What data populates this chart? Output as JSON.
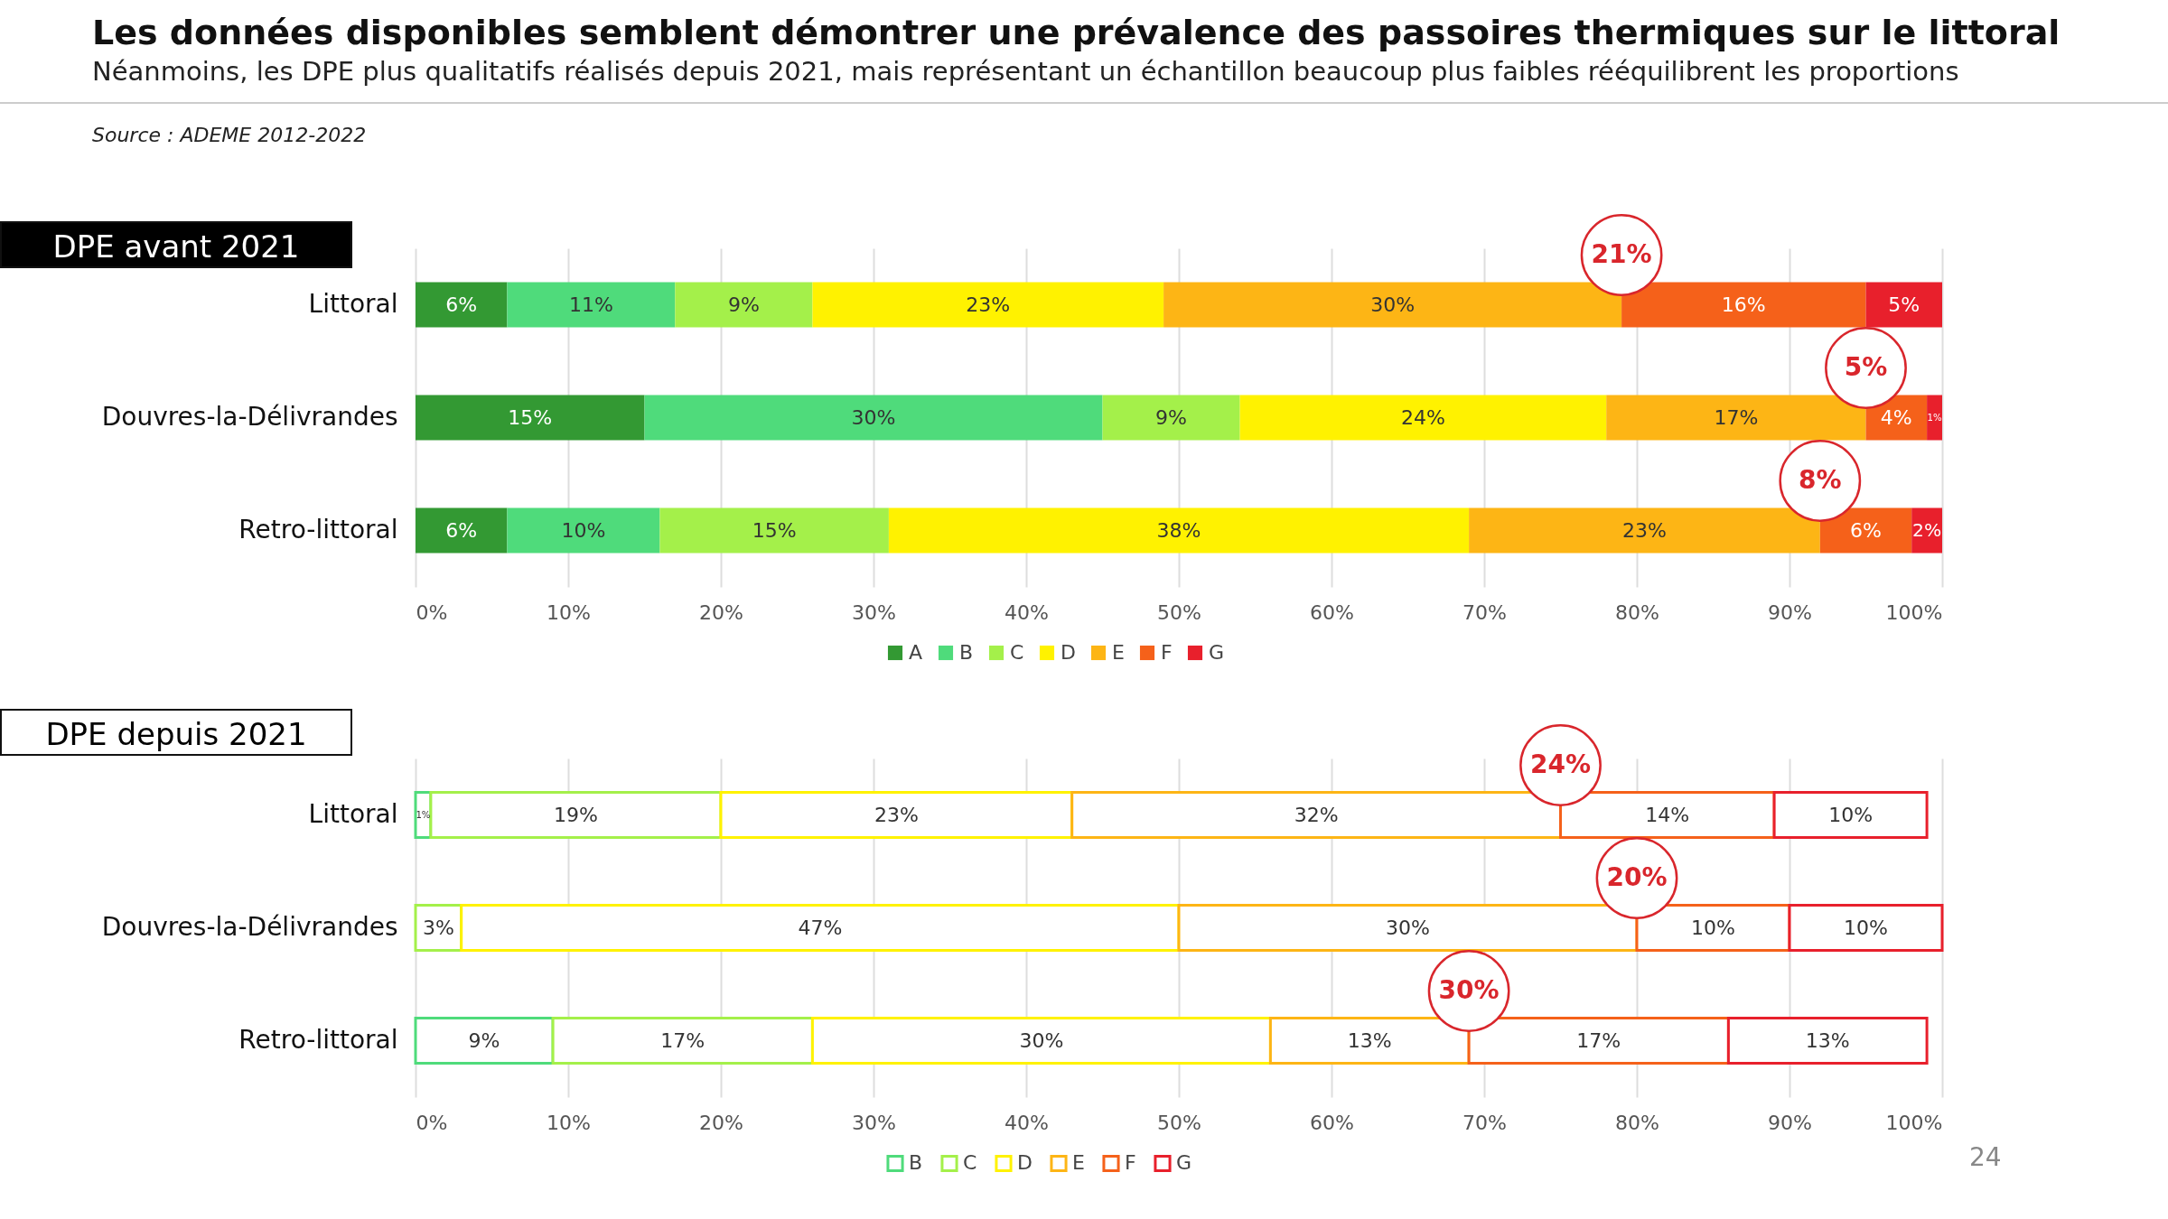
{
  "chart_data": [
    {
      "type": "bar",
      "orientation": "horizontal",
      "stacked": true,
      "title": "Les données disponibles semblent démontrer une prévalence des passoires thermiques sur le littoral",
      "subtitle": "Néanmoins, les DPE plus qualitatifs réalisés depuis 2021, mais représentant un échantillon beaucoup plus faibles rééquilibrent les proportions",
      "ylabel": "DPE avant 2021",
      "categories": [
        "Littoral",
        "Douvres-la-Délivrandes",
        "Retro-littoral"
      ],
      "series": [
        {
          "name": "A",
          "color": "#339933",
          "values": [
            6,
            15,
            6
          ],
          "value_labels": [
            "6%",
            "15%",
            "6%"
          ]
        },
        {
          "name": "B",
          "color": "#4fdb7b",
          "values": [
            11,
            30,
            10
          ],
          "value_labels": [
            "11%",
            "30%",
            "10%"
          ]
        },
        {
          "name": "C",
          "color": "#a4f04a",
          "values": [
            9,
            9,
            15
          ],
          "value_labels": [
            "9%",
            "9%",
            "15%"
          ]
        },
        {
          "name": "D",
          "color": "#fff200",
          "values": [
            23,
            24,
            38
          ],
          "value_labels": [
            "23%",
            "24%",
            "38%"
          ]
        },
        {
          "name": "E",
          "color": "#fdb515",
          "values": [
            30,
            17,
            23
          ],
          "value_labels": [
            "30%",
            "17%",
            "23%"
          ]
        },
        {
          "name": "F",
          "color": "#f5611a",
          "values": [
            16,
            4,
            6
          ],
          "value_labels": [
            "16%",
            "4%",
            "6%"
          ]
        },
        {
          "name": "G",
          "color": "#e8202c",
          "values": [
            5,
            1,
            2
          ],
          "value_labels": [
            "5%",
            "1%",
            "2%"
          ]
        }
      ],
      "xlim": [
        0,
        100
      ],
      "xticks": [
        {
          "value": 0,
          "label": "0%"
        },
        {
          "value": 10,
          "label": "10%"
        },
        {
          "value": 20,
          "label": "20%"
        },
        {
          "value": 30,
          "label": "30%"
        },
        {
          "value": 40,
          "label": "40%"
        },
        {
          "value": 50,
          "label": "50%"
        },
        {
          "value": 60,
          "label": "60%"
        },
        {
          "value": 70,
          "label": "70%"
        },
        {
          "value": 80,
          "label": "80%"
        },
        {
          "value": 90,
          "label": "90%"
        },
        {
          "value": 100,
          "label": "100%"
        }
      ],
      "grid": "x",
      "legend": "bottom",
      "annotations": [
        "Source : ADEME 2012-2022",
        {
          "text": "21%",
          "x": 79,
          "y": "Littoral"
        },
        {
          "text": "5%",
          "x": 95,
          "y": "Douvres-la-Délivrandes"
        },
        {
          "text": "8%",
          "x": 92,
          "y": "Retro-littoral"
        }
      ]
    },
    {
      "type": "bar",
      "orientation": "horizontal",
      "stacked": true,
      "ylabel": "DPE depuis 2021",
      "categories": [
        "Littoral",
        "Douvres-la-Délivrandes",
        "Retro-littoral"
      ],
      "series": [
        {
          "name": "B",
          "color": "#4fdb7b",
          "values": [
            1,
            null,
            9
          ],
          "value_labels": [
            "1%",
            null,
            "9%"
          ]
        },
        {
          "name": "C",
          "color": "#a4f04a",
          "values": [
            19,
            3,
            17
          ],
          "value_labels": [
            "19%",
            "3%",
            "17%"
          ]
        },
        {
          "name": "D",
          "color": "#fff200",
          "values": [
            23,
            47,
            30
          ],
          "value_labels": [
            "23%",
            "47%",
            "30%"
          ]
        },
        {
          "name": "E",
          "color": "#fdb515",
          "values": [
            32,
            30,
            13
          ],
          "value_labels": [
            "32%",
            "30%",
            "13%"
          ]
        },
        {
          "name": "F",
          "color": "#f5611a",
          "values": [
            14,
            10,
            17
          ],
          "value_labels": [
            "14%",
            "10%",
            "17%"
          ]
        },
        {
          "name": "G",
          "color": "#e8202c",
          "values": [
            10,
            10,
            13
          ],
          "value_labels": [
            "10%",
            "10%",
            "13%"
          ]
        }
      ],
      "xlim": [
        0,
        100
      ],
      "xticks": [
        {
          "value": 0,
          "label": "0%"
        },
        {
          "value": 10,
          "label": "10%"
        },
        {
          "value": 20,
          "label": "20%"
        },
        {
          "value": 30,
          "label": "30%"
        },
        {
          "value": 40,
          "label": "40%"
        },
        {
          "value": 50,
          "label": "50%"
        },
        {
          "value": 60,
          "label": "60%"
        },
        {
          "value": 70,
          "label": "70%"
        },
        {
          "value": 80,
          "label": "80%"
        },
        {
          "value": 90,
          "label": "90%"
        },
        {
          "value": 100,
          "label": "100%"
        }
      ],
      "grid": "x",
      "legend": "bottom",
      "annotations": [
        "24",
        {
          "text": "24%",
          "x": 75,
          "y": "Littoral"
        },
        {
          "text": "20%",
          "x": 80,
          "y": "Douvres-la-Délivrandes"
        },
        {
          "text": "30%",
          "x": 69,
          "y": "Retro-littoral"
        }
      ]
    }
  ]
}
